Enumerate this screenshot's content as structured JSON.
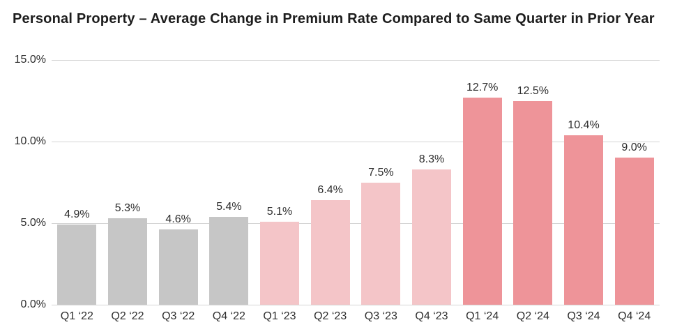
{
  "title": "Personal Property – Average Change in Premium Rate Compared to Same Quarter in Prior Year",
  "chart_data": {
    "type": "bar",
    "title": "Personal Property – Average Change in Premium Rate Compared to Same Quarter in Prior Year",
    "categories": [
      "Q1 ‘22",
      "Q2 ‘22",
      "Q3 ‘22",
      "Q4 ‘22",
      "Q1 ‘23",
      "Q2 ‘23",
      "Q3 ‘23",
      "Q4 ‘23",
      "Q1 ‘24",
      "Q2 ‘24",
      "Q3 ‘24",
      "Q4 ‘24"
    ],
    "values": [
      4.9,
      5.3,
      4.6,
      5.4,
      5.1,
      6.4,
      7.5,
      8.3,
      12.7,
      12.5,
      10.4,
      9.0
    ],
    "value_labels": [
      "4.9%",
      "5.3%",
      "4.6%",
      "5.4%",
      "5.1%",
      "6.4%",
      "7.5%",
      "8.3%",
      "12.7%",
      "12.5%",
      "10.4%",
      "9.0%"
    ],
    "bar_colors": [
      "#c6c6c6",
      "#c6c6c6",
      "#c6c6c6",
      "#c6c6c6",
      "#f4c5c8",
      "#f4c5c8",
      "#f4c5c8",
      "#f4c5c8",
      "#ee9499",
      "#ee9499",
      "#ee9499",
      "#ee9499"
    ],
    "group_colors": {
      "2022": "#c6c6c6",
      "2023": "#f4c5c8",
      "2024": "#ee9499"
    },
    "xlabel": "",
    "ylabel": "",
    "ylim": [
      0,
      15
    ],
    "yticks": [
      {
        "value": 0,
        "label": "0.0%"
      },
      {
        "value": 5,
        "label": "5.0%"
      },
      {
        "value": 10,
        "label": "10.0%"
      },
      {
        "value": 15,
        "label": "15.0%"
      }
    ],
    "grid": true,
    "gridline_color": "#d4d4d4",
    "legend": "none"
  }
}
